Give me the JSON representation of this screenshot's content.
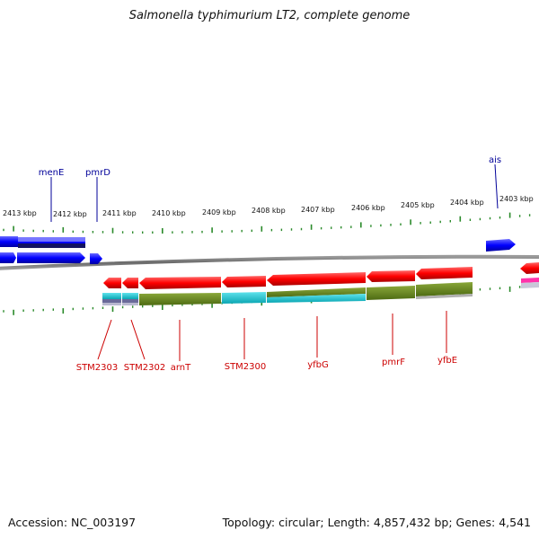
{
  "title": "Salmonella typhimurium LT2, complete genome",
  "footer": {
    "accession": "Accession: NC_003197",
    "summary": "Topology: circular; Length: 4,857,432 bp; Genes: 4,541"
  },
  "kbp_labels": [
    "2413 kbp",
    "2412 kbp",
    "2411 kbp",
    "2410 kbp",
    "2409 kbp",
    "2408 kbp",
    "2407 kbp",
    "2406 kbp",
    "2405 kbp",
    "2404 kbp",
    "2403 kbp"
  ],
  "top_genes": [
    "menE",
    "pmrD",
    "ais"
  ],
  "bottom_genes": [
    "STM2303",
    "STM2302",
    "arnT",
    "STM2300",
    "yfbG",
    "pmrF",
    "yfbE"
  ],
  "colors": {
    "forward_gene": "#1a1aff",
    "reverse_gene": "#ff1a1a",
    "top_label": "#000099",
    "bottom_label": "#cc0000",
    "tick": "#2a8a2a",
    "cog_olive": "#6b8a23",
    "cog_cyan": "#22c4d0",
    "cog_navy": "#1a1a66"
  }
}
